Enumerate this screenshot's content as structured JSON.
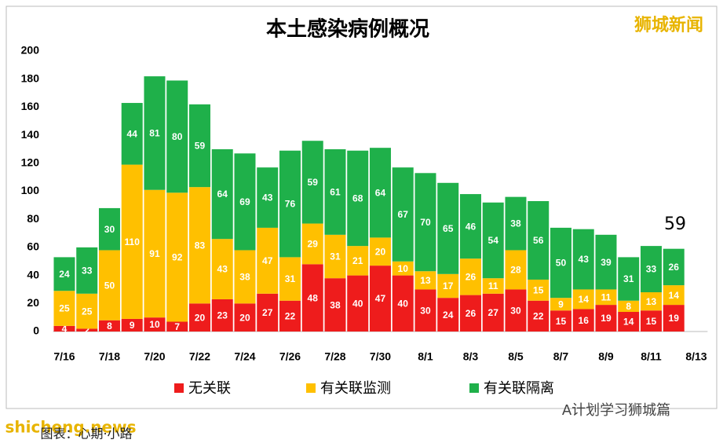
{
  "chart_data": {
    "type": "stacked-bar",
    "title": "本土感染病例概况",
    "categories": [
      "7/16",
      null,
      "7/18",
      null,
      "7/20",
      null,
      "7/22",
      null,
      "7/24",
      null,
      "7/26",
      null,
      "7/28",
      null,
      "7/30",
      null,
      "8/1",
      null,
      "8/3",
      null,
      "8/5",
      null,
      "8/7",
      null,
      "8/9",
      null,
      "8/11",
      null,
      "8/13"
    ],
    "series": [
      {
        "name": "无关联",
        "color": "#ee1c1c",
        "values": [
          4,
          2,
          8,
          9,
          10,
          7,
          20,
          23,
          20,
          27,
          22,
          48,
          38,
          40,
          47,
          40,
          30,
          24,
          26,
          27,
          30,
          22,
          15,
          16,
          19,
          14,
          15,
          19,
          null
        ]
      },
      {
        "name": "有关联监测",
        "color": "#ffc000",
        "values": [
          25,
          25,
          50,
          110,
          91,
          92,
          83,
          43,
          38,
          47,
          31,
          29,
          31,
          21,
          20,
          10,
          13,
          17,
          26,
          11,
          28,
          15,
          9,
          14,
          11,
          8,
          13,
          14,
          null
        ]
      },
      {
        "name": "有关联隔离",
        "color": "#1fb04a",
        "values": [
          24,
          33,
          30,
          44,
          81,
          80,
          59,
          64,
          69,
          43,
          76,
          59,
          61,
          68,
          64,
          67,
          70,
          65,
          46,
          54,
          38,
          56,
          50,
          43,
          39,
          31,
          33,
          26,
          null
        ]
      }
    ],
    "ylim": [
      0,
      200
    ],
    "yticks": [
      0,
      20,
      40,
      60,
      80,
      100,
      120,
      140,
      160,
      180,
      200
    ],
    "grid": false,
    "annotation": "59",
    "watermarks": [
      "狮城新闻",
      "A计划学习狮城篇",
      "shicheng.news",
      "图表：心期·小路"
    ]
  }
}
